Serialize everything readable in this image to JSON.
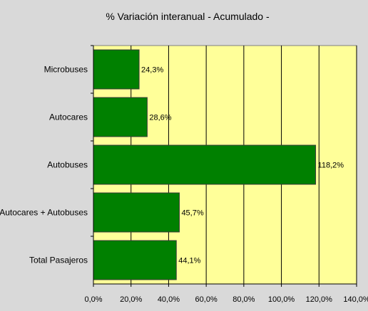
{
  "chart_data": {
    "type": "bar",
    "orientation": "horizontal",
    "title": "% Variación interanual - Acumulado -",
    "categories": [
      "Microbuses",
      "Autocares",
      "Autobuses",
      "Autocares + Autobuses",
      "Total Pasajeros"
    ],
    "values": [
      24.3,
      28.6,
      118.2,
      45.7,
      44.1
    ],
    "value_labels": [
      "24,3%",
      "28,6%",
      "118,2%",
      "45,7%",
      "44,1%"
    ],
    "xlim": [
      0,
      140
    ],
    "x_ticks": [
      0,
      20,
      40,
      60,
      80,
      100,
      120,
      140
    ],
    "x_tick_labels": [
      "0,0%",
      "20,0%",
      "40,0%",
      "60,0%",
      "80,0%",
      "100,0%",
      "120,0%",
      "140,0%"
    ],
    "grid": "vertical",
    "legend": "none",
    "colors": {
      "bar": "#008000",
      "plot_background": "#ffff99",
      "page_background": "#d9d9d9",
      "grid": "#000000"
    }
  }
}
